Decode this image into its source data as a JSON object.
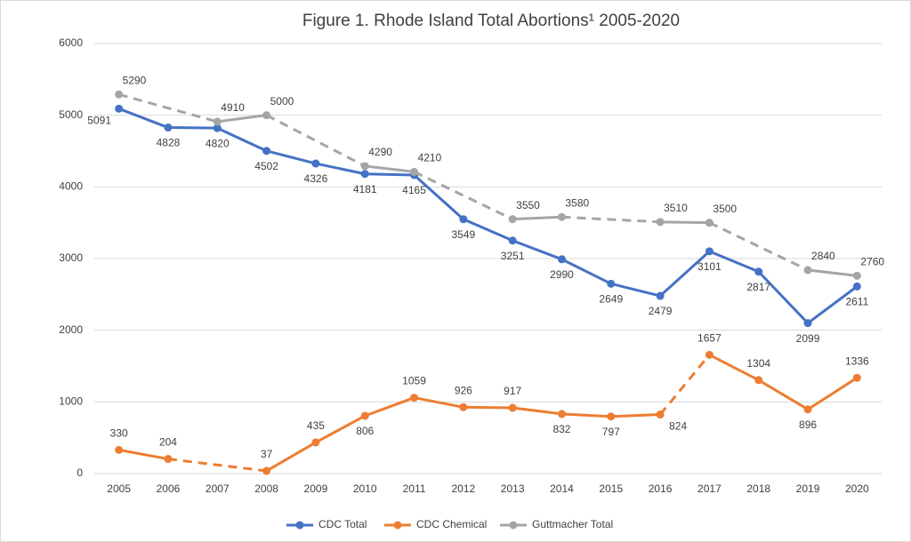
{
  "chart_data": {
    "type": "line",
    "title": "Figure 1. Rhode Island Total Abortions¹ 2005-2020",
    "categories": [
      "2005",
      "2006",
      "2007",
      "2008",
      "2009",
      "2010",
      "2011",
      "2012",
      "2013",
      "2014",
      "2015",
      "2016",
      "2017",
      "2018",
      "2019",
      "2020"
    ],
    "series": [
      {
        "name": "CDC Total",
        "color": "#4472c4",
        "values": [
          5091,
          4828,
          4820,
          4502,
          4326,
          4181,
          4165,
          3549,
          3251,
          2990,
          2649,
          2479,
          3101,
          2817,
          2099,
          2611
        ]
      },
      {
        "name": "CDC Chemical",
        "color": "#ed7d31",
        "values": [
          330,
          204,
          null,
          37,
          435,
          806,
          1059,
          926,
          917,
          832,
          797,
          824,
          1657,
          1304,
          896,
          1336
        ],
        "dashed_segments": [
          11
        ]
      },
      {
        "name": "Guttmacher Total",
        "color": "#a5a5a5",
        "values": [
          5290,
          null,
          4910,
          5000,
          null,
          4290,
          4210,
          null,
          3550,
          3580,
          null,
          3510,
          3500,
          null,
          2840,
          2760
        ]
      }
    ],
    "ylim": [
      0,
      6000
    ],
    "yticks": [
      0,
      1000,
      2000,
      3000,
      4000,
      5000,
      6000
    ],
    "grid": true,
    "legend": "bottom"
  }
}
